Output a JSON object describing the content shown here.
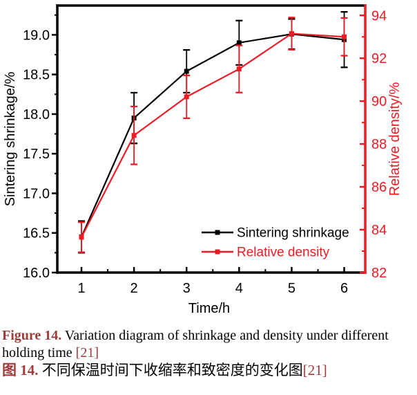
{
  "figure": {
    "accent_color": "#9e3b3b",
    "caption_en": {
      "label": "Figure 14.",
      "text": " Variation diagram of shrinkage and density under different holding time ",
      "ref": "[21]"
    },
    "caption_zh": {
      "label": "图 14.",
      "text": " 不同保温时间下收缩率和致密度的变化图",
      "ref": "[21]"
    }
  },
  "chart_data": {
    "type": "line",
    "title": "",
    "xlabel": "Time/h",
    "x": [
      1,
      2,
      3,
      4,
      5,
      6
    ],
    "x_ticks": [
      "1",
      "2",
      "3",
      "4",
      "5",
      "6"
    ],
    "x_range": [
      0.54,
      6.4
    ],
    "x_minor_step": 0.5,
    "grid": false,
    "left_axis": {
      "label": "Sintering shrinkage/%",
      "min": 16.0,
      "max": 19.37,
      "ticks": [
        "16.0",
        "16.5",
        "17.0",
        "17.5",
        "18.0",
        "18.5",
        "19.0"
      ],
      "minor_step": 0.25,
      "color": "#000000"
    },
    "right_axis": {
      "label": "Relative density/%",
      "min": 82,
      "max": 94.46,
      "ticks": [
        "82",
        "84",
        "86",
        "88",
        "90",
        "92",
        "94"
      ],
      "minor_step": 1,
      "color": "#ed1c24"
    },
    "series": [
      {
        "name": "Sintering shrinkage",
        "axis": "left",
        "color": "#000000",
        "marker": "square",
        "values": [
          16.45,
          17.95,
          18.54,
          18.9,
          19.01,
          18.94
        ],
        "errors": [
          0.2,
          0.32,
          0.27,
          0.28,
          0.19,
          0.35
        ]
      },
      {
        "name": "Relative density",
        "axis": "right",
        "color": "#ed1c24",
        "marker": "square",
        "values": [
          83.65,
          88.4,
          90.2,
          91.5,
          93.15,
          93.0
        ],
        "errors": [
          0.7,
          1.35,
          1.0,
          1.1,
          0.75,
          0.88
        ]
      }
    ],
    "legend": {
      "position": "inside-bottom-right"
    }
  }
}
